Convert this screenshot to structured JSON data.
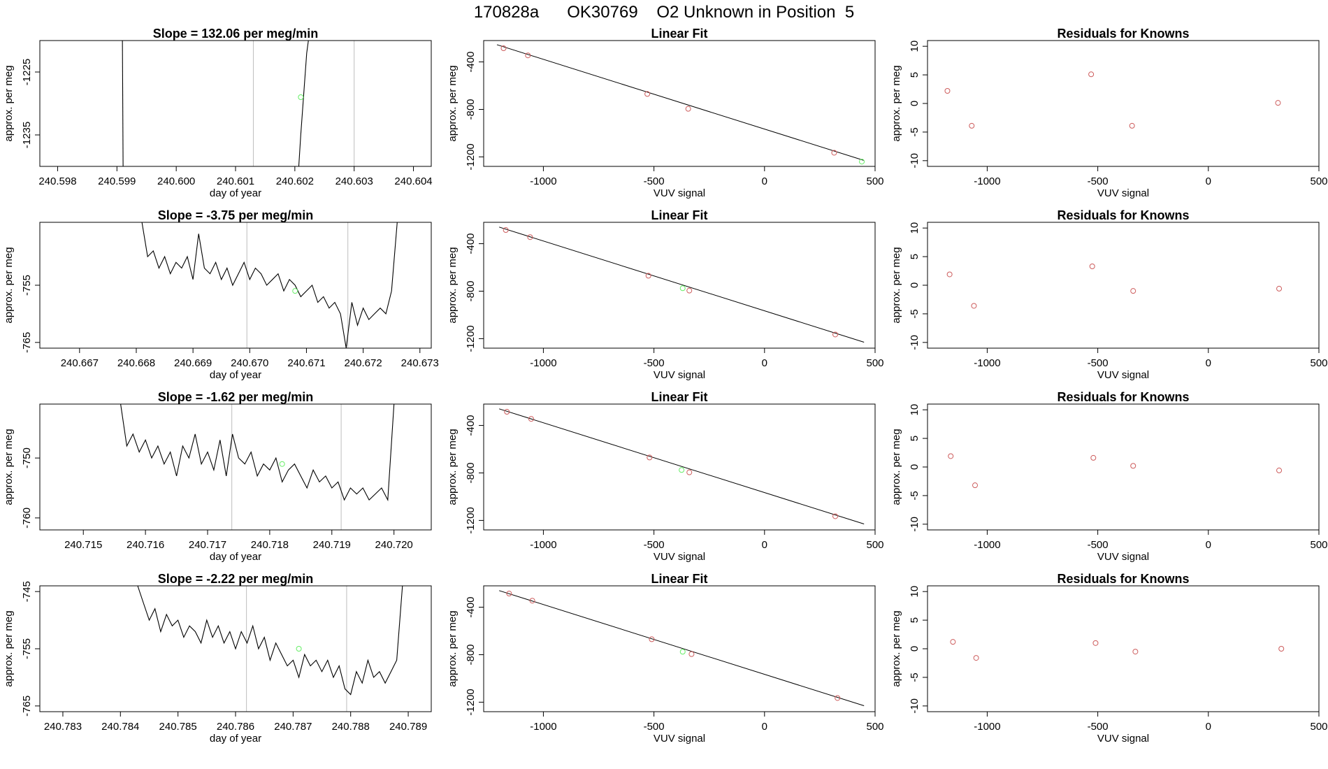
{
  "page_title": "170828a      OK30769    O2 Unknown in Position  5",
  "colors": {
    "trace": "#000000",
    "known_point": "#cd5c5c",
    "unknown_point": "#66ee66",
    "vline": "#bdbdbd",
    "axis": "#000000"
  },
  "chart_data": [
    {
      "type": "line",
      "panel": "time-series",
      "row": 1,
      "title": "Slope =  132.06  per meg/min",
      "xlabel": "day of year",
      "ylabel": "approx. per meg",
      "x_ticks": [
        "240.598",
        "240.599",
        "240.600",
        "240.601",
        "240.602",
        "240.603",
        "240.604"
      ],
      "y_ticks": [
        "-1225",
        "-1235"
      ],
      "xlim": [
        240.5977,
        240.6043
      ],
      "ylim": [
        -1240,
        -1220
      ],
      "vlines": [
        240.6013,
        240.603
      ],
      "series": [
        {
          "x": [
            240.59909,
            240.59911
          ],
          "y": [
            -1215,
            -1250
          ]
        },
        {
          "x": [
            240.602,
            240.6021,
            240.6022,
            240.6023
          ],
          "y": [
            -1250,
            -1235,
            -1222,
            -1215
          ]
        }
      ],
      "unknown_point": {
        "x": 240.6021,
        "y": -1229
      }
    },
    {
      "type": "scatter",
      "panel": "linear-fit",
      "row": 1,
      "title": "Linear Fit",
      "xlabel": "VUV signal",
      "ylabel": "approx. per meg",
      "x_ticks": [
        "-1000",
        "-500",
        "0",
        "500"
      ],
      "y_ticks": [
        "-400",
        "-800",
        "-1200"
      ],
      "xlim": [
        -1270,
        500
      ],
      "ylim": [
        -1280,
        -220
      ],
      "known": {
        "x": [
          -1180,
          -1070,
          -530,
          -345,
          315
        ],
        "y": [
          -285,
          -345,
          -670,
          -795,
          -1165
        ]
      },
      "unknown": {
        "x": [
          440
        ],
        "y": [
          -1240
        ]
      },
      "fit_line": {
        "x": [
          -1210,
          450
        ],
        "y": [
          -255,
          -1230
        ]
      }
    },
    {
      "type": "scatter",
      "panel": "residuals",
      "row": 1,
      "title": "Residuals for Knowns",
      "xlabel": "VUV signal",
      "ylabel": "approx. per meg",
      "x_ticks": [
        "-1000",
        "-500",
        "0",
        "500"
      ],
      "y_ticks": [
        "10",
        "5",
        "0",
        "-5",
        "-10"
      ],
      "xlim": [
        -1270,
        500
      ],
      "ylim": [
        -11,
        11
      ],
      "x": [
        -1180,
        -1070,
        -530,
        -345,
        315
      ],
      "y": [
        2.2,
        -3.9,
        5.1,
        -3.9,
        0.1
      ]
    },
    {
      "type": "line",
      "panel": "time-series",
      "row": 2,
      "title": "Slope =  -3.75  per meg/min",
      "xlabel": "day of year",
      "ylabel": "approx. per meg",
      "x_ticks": [
        "240.667",
        "240.668",
        "240.669",
        "240.670",
        "240.671",
        "240.672",
        "240.673"
      ],
      "y_ticks": [
        "-755",
        "-765"
      ],
      "xlim": [
        240.6663,
        240.6732
      ],
      "ylim": [
        -766,
        -744
      ],
      "vlines": [
        240.66995,
        240.67173
      ],
      "series": [
        {
          "x": [
            240.6681,
            240.6682,
            240.6683,
            240.6684,
            240.6685,
            240.6686,
            240.6687,
            240.6688,
            240.6689,
            240.669,
            240.6691,
            240.6692,
            240.6693,
            240.6694,
            240.6695,
            240.6696,
            240.6697,
            240.6698,
            240.6699,
            240.67,
            240.6701,
            240.6702,
            240.6703,
            240.6704,
            240.6705,
            240.6706,
            240.6707,
            240.6708,
            240.6709,
            240.671,
            240.6711,
            240.6712,
            240.6713,
            240.6714,
            240.6715,
            240.6716,
            240.6717,
            240.6718,
            240.6719,
            240.672,
            240.6721,
            240.6722,
            240.6723,
            240.6724,
            240.6725,
            240.6726
          ],
          "y": [
            -744,
            -750,
            -749,
            -752,
            -750,
            -753,
            -751,
            -752,
            -750,
            -754,
            -746,
            -752,
            -753,
            -751,
            -754,
            -752,
            -755,
            -753,
            -751,
            -754,
            -752,
            -753,
            -755,
            -754,
            -753,
            -756,
            -754,
            -755,
            -757,
            -756,
            -755,
            -758,
            -757,
            -759,
            -758,
            -760,
            -766,
            -758,
            -762,
            -759,
            -761,
            -760,
            -759,
            -760,
            -756,
            -744
          ]
        }
      ],
      "unknown_point": {
        "x": 240.6708,
        "y": -756
      }
    },
    {
      "type": "scatter",
      "panel": "linear-fit",
      "row": 2,
      "title": "Linear Fit",
      "xlabel": "VUV signal",
      "ylabel": "approx. per meg",
      "x_ticks": [
        "-1000",
        "-500",
        "0",
        "500"
      ],
      "y_ticks": [
        "-400",
        "-800",
        "-1200"
      ],
      "xlim": [
        -1270,
        500
      ],
      "ylim": [
        -1280,
        -220
      ],
      "known": {
        "x": [
          -1170,
          -1060,
          -525,
          -340,
          320
        ],
        "y": [
          -285,
          -345,
          -670,
          -795,
          -1165
        ]
      },
      "unknown": {
        "x": [
          -370
        ],
        "y": [
          -775
        ]
      },
      "fit_line": {
        "x": [
          -1200,
          450
        ],
        "y": [
          -260,
          -1230
        ]
      }
    },
    {
      "type": "scatter",
      "panel": "residuals",
      "row": 2,
      "title": "Residuals for Knowns",
      "xlabel": "VUV signal",
      "ylabel": "approx. per meg",
      "x_ticks": [
        "-1000",
        "-500",
        "0",
        "500"
      ],
      "y_ticks": [
        "10",
        "5",
        "0",
        "-5",
        "-10"
      ],
      "xlim": [
        -1270,
        500
      ],
      "ylim": [
        -11,
        11
      ],
      "x": [
        -1170,
        -1060,
        -525,
        -340,
        320
      ],
      "y": [
        1.9,
        -3.6,
        3.3,
        -1.0,
        -0.6
      ]
    },
    {
      "type": "line",
      "panel": "time-series",
      "row": 3,
      "title": "Slope =  -1.62  per meg/min",
      "xlabel": "day of year",
      "ylabel": "approx. per meg",
      "x_ticks": [
        "240.715",
        "240.716",
        "240.717",
        "240.718",
        "240.719",
        "240.720"
      ],
      "y_ticks": [
        "-750",
        "-760"
      ],
      "xlim": [
        240.7143,
        240.7206
      ],
      "ylim": [
        -762,
        -741
      ],
      "vlines": [
        240.71739,
        240.71915
      ],
      "series": [
        {
          "x": [
            240.7156,
            240.7157,
            240.7158,
            240.7159,
            240.716,
            240.7161,
            240.7162,
            240.7163,
            240.7164,
            240.7165,
            240.7166,
            240.7167,
            240.7168,
            240.7169,
            240.717,
            240.7171,
            240.7172,
            240.7173,
            240.7174,
            240.7175,
            240.7176,
            240.7177,
            240.7178,
            240.7179,
            240.718,
            240.7181,
            240.7182,
            240.7183,
            240.7184,
            240.7185,
            240.7186,
            240.7187,
            240.7188,
            240.7189,
            240.719,
            240.7191,
            240.7192,
            240.7193,
            240.7194,
            240.7195,
            240.7196,
            240.7197,
            240.7198,
            240.7199,
            240.72
          ],
          "y": [
            -741,
            -748,
            -746,
            -749,
            -747,
            -750,
            -748,
            -751,
            -749,
            -753,
            -748,
            -750,
            -746,
            -751,
            -749,
            -752,
            -747,
            -753,
            -746,
            -750,
            -751,
            -749,
            -753,
            -751,
            -752,
            -750,
            -754,
            -752,
            -751,
            -753,
            -755,
            -752,
            -754,
            -753,
            -755,
            -754,
            -757,
            -755,
            -756,
            -755,
            -757,
            -756,
            -755,
            -757,
            -741
          ]
        }
      ],
      "unknown_point": {
        "x": 240.7182,
        "y": -751
      }
    },
    {
      "type": "scatter",
      "panel": "linear-fit",
      "row": 3,
      "title": "Linear Fit",
      "xlabel": "VUV signal",
      "ylabel": "approx. per meg",
      "x_ticks": [
        "-1000",
        "-500",
        "0",
        "500"
      ],
      "y_ticks": [
        "-400",
        "-800",
        "-1200"
      ],
      "xlim": [
        -1270,
        500
      ],
      "ylim": [
        -1280,
        -220
      ],
      "known": {
        "x": [
          -1165,
          -1055,
          -520,
          -340,
          320
        ],
        "y": [
          -285,
          -345,
          -670,
          -795,
          -1165
        ]
      },
      "unknown": {
        "x": [
          -375
        ],
        "y": [
          -775
        ]
      },
      "fit_line": {
        "x": [
          -1200,
          450
        ],
        "y": [
          -260,
          -1230
        ]
      }
    },
    {
      "type": "scatter",
      "panel": "residuals",
      "row": 3,
      "title": "Residuals for Knowns",
      "xlabel": "VUV signal",
      "ylabel": "approx. per meg",
      "x_ticks": [
        "-1000",
        "-500",
        "0",
        "500"
      ],
      "y_ticks": [
        "10",
        "5",
        "0",
        "-5",
        "-10"
      ],
      "xlim": [
        -1270,
        500
      ],
      "ylim": [
        -11,
        11
      ],
      "x": [
        -1165,
        -1055,
        -520,
        -340,
        320
      ],
      "y": [
        1.9,
        -3.2,
        1.6,
        0.2,
        -0.6
      ]
    },
    {
      "type": "line",
      "panel": "time-series",
      "row": 4,
      "title": "Slope =  -2.22  per meg/min",
      "xlabel": "day of year",
      "ylabel": "approx. per meg",
      "x_ticks": [
        "240.783",
        "240.784",
        "240.785",
        "240.786",
        "240.787",
        "240.788",
        "240.789"
      ],
      "y_ticks": [
        "-745",
        "-755",
        "-765"
      ],
      "xlim": [
        240.7826,
        240.7894
      ],
      "ylim": [
        -766,
        -744
      ],
      "vlines": [
        240.78619,
        240.78793
      ],
      "series": [
        {
          "x": [
            240.7843,
            240.7844,
            240.7845,
            240.7846,
            240.7847,
            240.7848,
            240.7849,
            240.785,
            240.7851,
            240.7852,
            240.7853,
            240.7854,
            240.7855,
            240.7856,
            240.7857,
            240.7858,
            240.7859,
            240.786,
            240.7861,
            240.7862,
            240.7863,
            240.7864,
            240.7865,
            240.7866,
            240.7867,
            240.7868,
            240.7869,
            240.787,
            240.7871,
            240.7872,
            240.7873,
            240.7874,
            240.7875,
            240.7876,
            240.7877,
            240.7878,
            240.7879,
            240.788,
            240.7881,
            240.7882,
            240.7883,
            240.7884,
            240.7885,
            240.7886,
            240.7887,
            240.7888,
            240.7889
          ],
          "y": [
            -744,
            -747,
            -750,
            -748,
            -752,
            -749,
            -751,
            -750,
            -753,
            -751,
            -752,
            -754,
            -750,
            -753,
            -751,
            -754,
            -752,
            -755,
            -752,
            -754,
            -751,
            -755,
            -753,
            -757,
            -754,
            -756,
            -758,
            -757,
            -760,
            -756,
            -758,
            -757,
            -759,
            -757,
            -760,
            -758,
            -762,
            -763,
            -759,
            -761,
            -757,
            -760,
            -759,
            -761,
            -759,
            -757,
            -744
          ]
        }
      ],
      "unknown_point": {
        "x": 240.7871,
        "y": -755
      }
    },
    {
      "type": "scatter",
      "panel": "linear-fit",
      "row": 4,
      "title": "Linear Fit",
      "xlabel": "VUV signal",
      "ylabel": "approx. per meg",
      "x_ticks": [
        "-1000",
        "-500",
        "0",
        "500"
      ],
      "y_ticks": [
        "-400",
        "-800",
        "-1200"
      ],
      "xlim": [
        -1270,
        500
      ],
      "ylim": [
        -1280,
        -220
      ],
      "known": {
        "x": [
          -1155,
          -1050,
          -510,
          -330,
          330
        ],
        "y": [
          -285,
          -345,
          -670,
          -795,
          -1165
        ]
      },
      "unknown": {
        "x": [
          -370
        ],
        "y": [
          -775
        ]
      },
      "fit_line": {
        "x": [
          -1200,
          450
        ],
        "y": [
          -260,
          -1230
        ]
      }
    },
    {
      "type": "scatter",
      "panel": "residuals",
      "row": 4,
      "title": "Residuals for Knowns",
      "xlabel": "VUV signal",
      "ylabel": "approx. per meg",
      "x_ticks": [
        "-1000",
        "-500",
        "0",
        "500"
      ],
      "y_ticks": [
        "10",
        "5",
        "0",
        "-5",
        "-10"
      ],
      "xlim": [
        -1270,
        500
      ],
      "ylim": [
        -11,
        11
      ],
      "x": [
        -1155,
        -1050,
        -510,
        -330,
        330
      ],
      "y": [
        1.2,
        -1.6,
        1.0,
        -0.5,
        0.0
      ]
    }
  ]
}
